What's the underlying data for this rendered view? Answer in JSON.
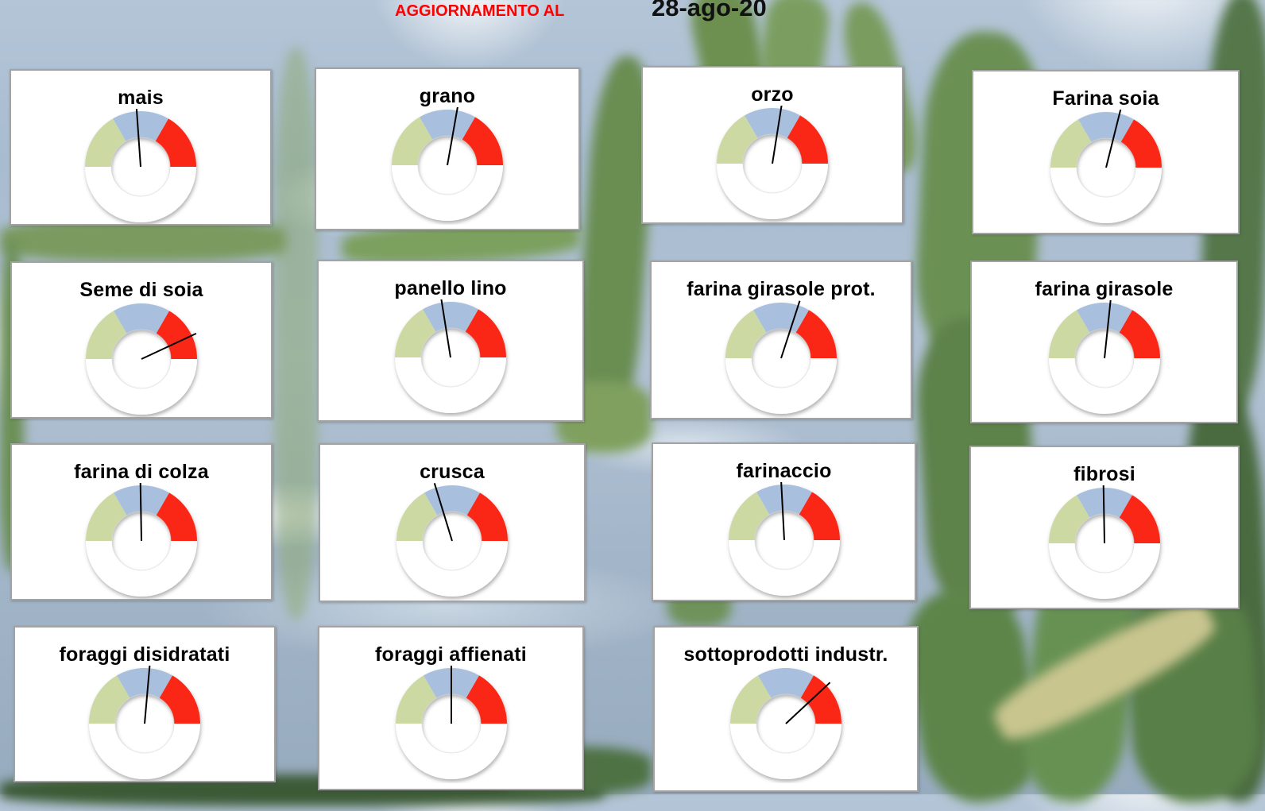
{
  "header": {
    "update_label": "AGGIORNAMENTO AL",
    "update_date": "28-ago-20",
    "label_color": "#ff0000",
    "date_color": "#111111"
  },
  "canvas": {
    "card_background": "#ffffff",
    "card_border": "#a3a3a3",
    "sky_color": "#aabfd3"
  },
  "gauge_style": {
    "type_note": "half-doughnut gauge, scale spans 180 degrees from left (0) to right (180)",
    "scale_start_deg": 180,
    "segment_sweeps_deg": [
      60,
      60,
      60
    ],
    "segment_colors": [
      "#ccd9a3",
      "#a8c0dd",
      "#fa2818"
    ],
    "track_color": "#ffffff",
    "needle_color": "#000000"
  },
  "chart_data": [
    {
      "type": "gauge",
      "title": "mais",
      "needle_deg_from_vertical": -4,
      "needle_value_0_180": 86
    },
    {
      "type": "gauge",
      "title": "grano",
      "needle_deg_from_vertical": 10,
      "needle_value_0_180": 100
    },
    {
      "type": "gauge",
      "title": "orzo",
      "needle_deg_from_vertical": 9,
      "needle_value_0_180": 99
    },
    {
      "type": "gauge",
      "title": "Farina soia",
      "needle_deg_from_vertical": 14,
      "needle_value_0_180": 104
    },
    {
      "type": "gauge",
      "title": "Seme di soia",
      "needle_deg_from_vertical": 65,
      "needle_value_0_180": 155
    },
    {
      "type": "gauge",
      "title": "panello lino",
      "needle_deg_from_vertical": -9,
      "needle_value_0_180": 81
    },
    {
      "type": "gauge",
      "title": "farina girasole prot.",
      "needle_deg_from_vertical": 18,
      "needle_value_0_180": 108
    },
    {
      "type": "gauge",
      "title": "farina girasole",
      "needle_deg_from_vertical": 6,
      "needle_value_0_180": 96
    },
    {
      "type": "gauge",
      "title": "farina di colza",
      "needle_deg_from_vertical": -1,
      "needle_value_0_180": 89
    },
    {
      "type": "gauge",
      "title": "crusca",
      "needle_deg_from_vertical": -17,
      "needle_value_0_180": 73
    },
    {
      "type": "gauge",
      "title": "farinaccio",
      "needle_deg_from_vertical": -3,
      "needle_value_0_180": 87
    },
    {
      "type": "gauge",
      "title": "fibrosi",
      "needle_deg_from_vertical": -1,
      "needle_value_0_180": 89
    },
    {
      "type": "gauge",
      "title": "foraggi disidratati",
      "needle_deg_from_vertical": 5,
      "needle_value_0_180": 95
    },
    {
      "type": "gauge",
      "title": "foraggi affienati",
      "needle_deg_from_vertical": 0,
      "needle_value_0_180": 90
    },
    {
      "type": "gauge",
      "title": "sottoprodotti industr.",
      "needle_deg_from_vertical": 47,
      "needle_value_0_180": 137
    }
  ]
}
